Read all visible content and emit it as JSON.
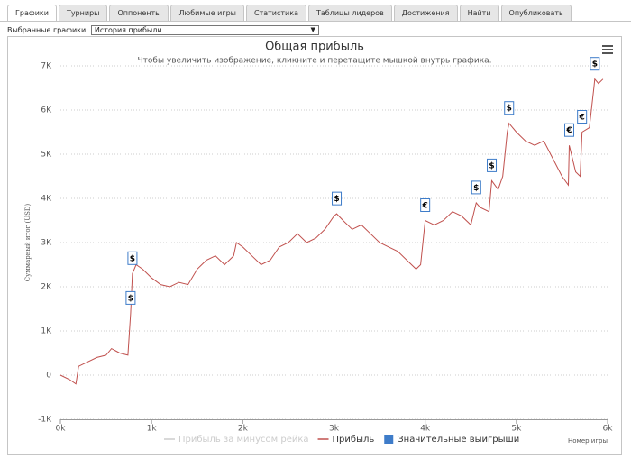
{
  "tabs": [
    "Графики",
    "Турниры",
    "Оппоненты",
    "Любимые игры",
    "Статистика",
    "Таблицы лидеров",
    "Достижения",
    "Найти",
    "Опубликовать"
  ],
  "selector_label": "Выбранные графики:",
  "selector_value": "История прибыли",
  "chart_data": {
    "type": "line",
    "title": "Общая прибыль",
    "subtitle": "Чтобы увеличить изображение, кликните и перетащите мышкой внутрь графика.",
    "x_label": "Номер игры",
    "y_label": "Суммарный итог (USD)",
    "xlim": [
      0,
      6000
    ],
    "xticks": [
      {
        "value": 0,
        "label": "0k"
      },
      {
        "value": 1000,
        "label": "1k"
      },
      {
        "value": 2000,
        "label": "2k"
      },
      {
        "value": 3000,
        "label": "3k"
      },
      {
        "value": 4000,
        "label": "4k"
      },
      {
        "value": 5000,
        "label": "5k"
      },
      {
        "value": 6000,
        "label": "6k"
      }
    ],
    "ylim": [
      -1000,
      7000
    ],
    "yticks": [
      {
        "value": -1000,
        "label": "-1K"
      },
      0,
      {
        "value": 1000,
        "label": "1K"
      },
      {
        "value": 2000,
        "label": "2K"
      },
      {
        "value": 3000,
        "label": "3K"
      },
      {
        "value": 4000,
        "label": "4K"
      },
      {
        "value": 5000,
        "label": "5K"
      },
      {
        "value": 6000,
        "label": "6K"
      },
      {
        "value": 7000,
        "label": "7K"
      }
    ],
    "grid": true,
    "series": [
      {
        "name": "Прибыль за минусом рейка",
        "color": "#cccccc",
        "hidden": true
      },
      {
        "name": "Прибыль",
        "color": "#c0504d",
        "x": [
          0,
          100,
          170,
          200,
          300,
          400,
          500,
          560,
          650,
          740,
          770,
          790,
          830,
          900,
          1000,
          1100,
          1200,
          1300,
          1400,
          1500,
          1600,
          1700,
          1800,
          1900,
          1930,
          2000,
          2100,
          2200,
          2300,
          2400,
          2500,
          2600,
          2700,
          2800,
          2900,
          3000,
          3030,
          3100,
          3200,
          3300,
          3400,
          3500,
          3600,
          3700,
          3800,
          3900,
          3950,
          4000,
          4100,
          4200,
          4300,
          4400,
          4500,
          4560,
          4600,
          4700,
          4730,
          4800,
          4850,
          4900,
          4920,
          5000,
          5100,
          5200,
          5300,
          5400,
          5500,
          5570,
          5580,
          5650,
          5700,
          5720,
          5800,
          5850,
          5860,
          5900,
          5950
        ],
        "values": [
          0,
          -100,
          -200,
          200,
          300,
          400,
          450,
          600,
          500,
          450,
          1400,
          2300,
          2500,
          2400,
          2200,
          2050,
          2000,
          2100,
          2050,
          2400,
          2600,
          2700,
          2500,
          2700,
          3000,
          2900,
          2700,
          2500,
          2600,
          2900,
          3000,
          3200,
          3000,
          3100,
          3300,
          3600,
          3650,
          3500,
          3300,
          3400,
          3200,
          3000,
          2900,
          2800,
          2600,
          2400,
          2500,
          3500,
          3400,
          3500,
          3700,
          3600,
          3400,
          3900,
          3800,
          3700,
          4400,
          4200,
          4500,
          5500,
          5700,
          5500,
          5300,
          5200,
          5300,
          4900,
          4500,
          4300,
          5200,
          4600,
          4500,
          5500,
          5600,
          6500,
          6700,
          6600,
          6700
        ]
      },
      {
        "name": "Значительные выигрыши",
        "color": "#3e7cc9",
        "x": [
          770,
          790,
          3030,
          4000,
          4560,
          4730,
          4920,
          5580,
          5720,
          5860
        ],
        "values": [
          1400,
          2300,
          3650,
          3500,
          3900,
          4400,
          5700,
          5200,
          5500,
          6700
        ],
        "labels": [
          "$",
          "$",
          "$",
          "€",
          "$",
          "$",
          "$",
          "€",
          "€",
          "$"
        ]
      }
    ]
  }
}
